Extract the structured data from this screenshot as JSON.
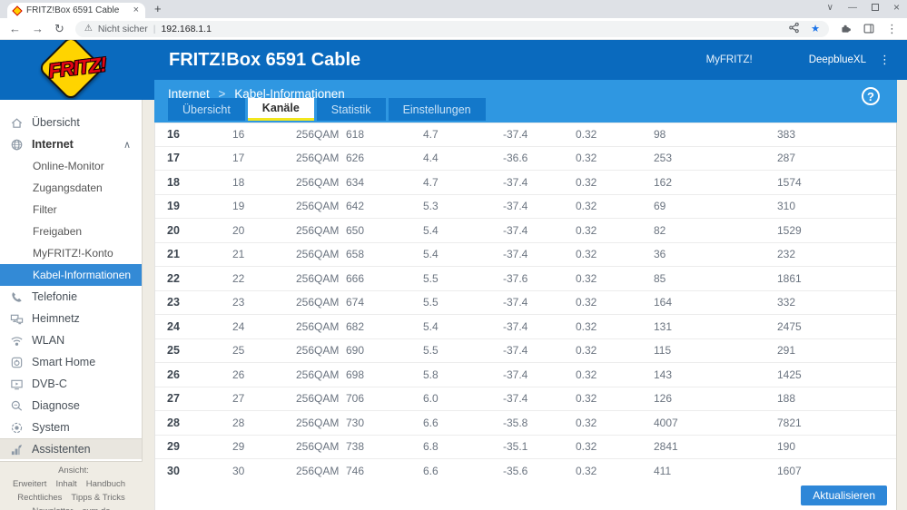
{
  "browser": {
    "tab_title": "FRITZ!Box 6591 Cable",
    "security_label": "Nicht sicher",
    "url": "192.168.1.1"
  },
  "glyphs": {
    "back": "←",
    "forward": "→",
    "reload": "↻",
    "warning": "⚠",
    "divider": "|",
    "tab_close": "×",
    "new_tab": "+",
    "tab_search": "∨",
    "minimize": "—",
    "close": "×",
    "star": "★",
    "kebab": "⋮",
    "help": "?",
    "chevron_up": "∧",
    "breadcrumb_sep": ">"
  },
  "header": {
    "logo_text": "FRITZ!",
    "title": "FRITZ!Box 6591 Cable",
    "myfritz_link": "MyFRITZ!",
    "user_menu": "DeepblueXL",
    "breadcrumb_section": "Internet",
    "breadcrumb_page": "Kabel-Informationen"
  },
  "tabs": [
    {
      "label": "Übersicht",
      "active": false
    },
    {
      "label": "Kanäle",
      "active": true
    },
    {
      "label": "Statistik",
      "active": false
    },
    {
      "label": "Einstellungen",
      "active": false
    }
  ],
  "sidebar": {
    "items": [
      {
        "label": "Übersicht",
        "icon": "home",
        "level": "top"
      },
      {
        "label": "Internet",
        "icon": "globe",
        "level": "top",
        "expanded": true
      },
      {
        "label": "Online-Monitor",
        "level": "sub"
      },
      {
        "label": "Zugangsdaten",
        "level": "sub"
      },
      {
        "label": "Filter",
        "level": "sub"
      },
      {
        "label": "Freigaben",
        "level": "sub"
      },
      {
        "label": "MyFRITZ!-Konto",
        "level": "sub"
      },
      {
        "label": "Kabel-Informationen",
        "level": "sub",
        "active": true
      },
      {
        "label": "Telefonie",
        "icon": "phone",
        "level": "top"
      },
      {
        "label": "Heimnetz",
        "icon": "network",
        "level": "top"
      },
      {
        "label": "WLAN",
        "icon": "wifi",
        "level": "top"
      },
      {
        "label": "Smart Home",
        "icon": "smarthome",
        "level": "top"
      },
      {
        "label": "DVB-C",
        "icon": "tv",
        "level": "top"
      },
      {
        "label": "Diagnose",
        "icon": "magnifier",
        "level": "top"
      },
      {
        "label": "System",
        "icon": "system",
        "level": "top"
      },
      {
        "label": "Assistenten",
        "icon": "assistant",
        "level": "top",
        "highlighted": true
      }
    ],
    "footer_lines": [
      [
        "Ansicht: Erweitert",
        "Inhalt",
        "Handbuch"
      ],
      [
        "Rechtliches",
        "Tipps & Tricks"
      ],
      [
        "Newsletter",
        "avm.de"
      ]
    ]
  },
  "table": {
    "rows": [
      [
        "16",
        "16",
        "256QAM",
        "618",
        "4.7",
        "-37.4",
        "0.32",
        "98",
        "383"
      ],
      [
        "17",
        "17",
        "256QAM",
        "626",
        "4.4",
        "-36.6",
        "0.32",
        "253",
        "287"
      ],
      [
        "18",
        "18",
        "256QAM",
        "634",
        "4.7",
        "-37.4",
        "0.32",
        "162",
        "1574"
      ],
      [
        "19",
        "19",
        "256QAM",
        "642",
        "5.3",
        "-37.4",
        "0.32",
        "69",
        "310"
      ],
      [
        "20",
        "20",
        "256QAM",
        "650",
        "5.4",
        "-37.4",
        "0.32",
        "82",
        "1529"
      ],
      [
        "21",
        "21",
        "256QAM",
        "658",
        "5.4",
        "-37.4",
        "0.32",
        "36",
        "232"
      ],
      [
        "22",
        "22",
        "256QAM",
        "666",
        "5.5",
        "-37.6",
        "0.32",
        "85",
        "1861"
      ],
      [
        "23",
        "23",
        "256QAM",
        "674",
        "5.5",
        "-37.4",
        "0.32",
        "164",
        "332"
      ],
      [
        "24",
        "24",
        "256QAM",
        "682",
        "5.4",
        "-37.4",
        "0.32",
        "131",
        "2475"
      ],
      [
        "25",
        "25",
        "256QAM",
        "690",
        "5.5",
        "-37.4",
        "0.32",
        "115",
        "291"
      ],
      [
        "26",
        "26",
        "256QAM",
        "698",
        "5.8",
        "-37.4",
        "0.32",
        "143",
        "1425"
      ],
      [
        "27",
        "27",
        "256QAM",
        "706",
        "6.0",
        "-37.4",
        "0.32",
        "126",
        "188"
      ],
      [
        "28",
        "28",
        "256QAM",
        "730",
        "6.6",
        "-35.8",
        "0.32",
        "4007",
        "7821"
      ],
      [
        "29",
        "29",
        "256QAM",
        "738",
        "6.8",
        "-35.1",
        "0.32",
        "2841",
        "190"
      ],
      [
        "30",
        "30",
        "256QAM",
        "746",
        "6.6",
        "-35.6",
        "0.32",
        "411",
        "1607"
      ]
    ]
  },
  "actions": {
    "refresh_label": "Aktualisieren"
  },
  "colors": {
    "header_dark": "#0a6abe",
    "header_light": "#2f97e1",
    "tab_inactive": "#1378ca",
    "accent_yellow": "#f2e71d",
    "active_item": "#338ad6",
    "button_blue": "#2e87d8",
    "fritz_yellow": "#ffd400",
    "fritz_red": "#e30613",
    "page_beige": "#efece4"
  }
}
